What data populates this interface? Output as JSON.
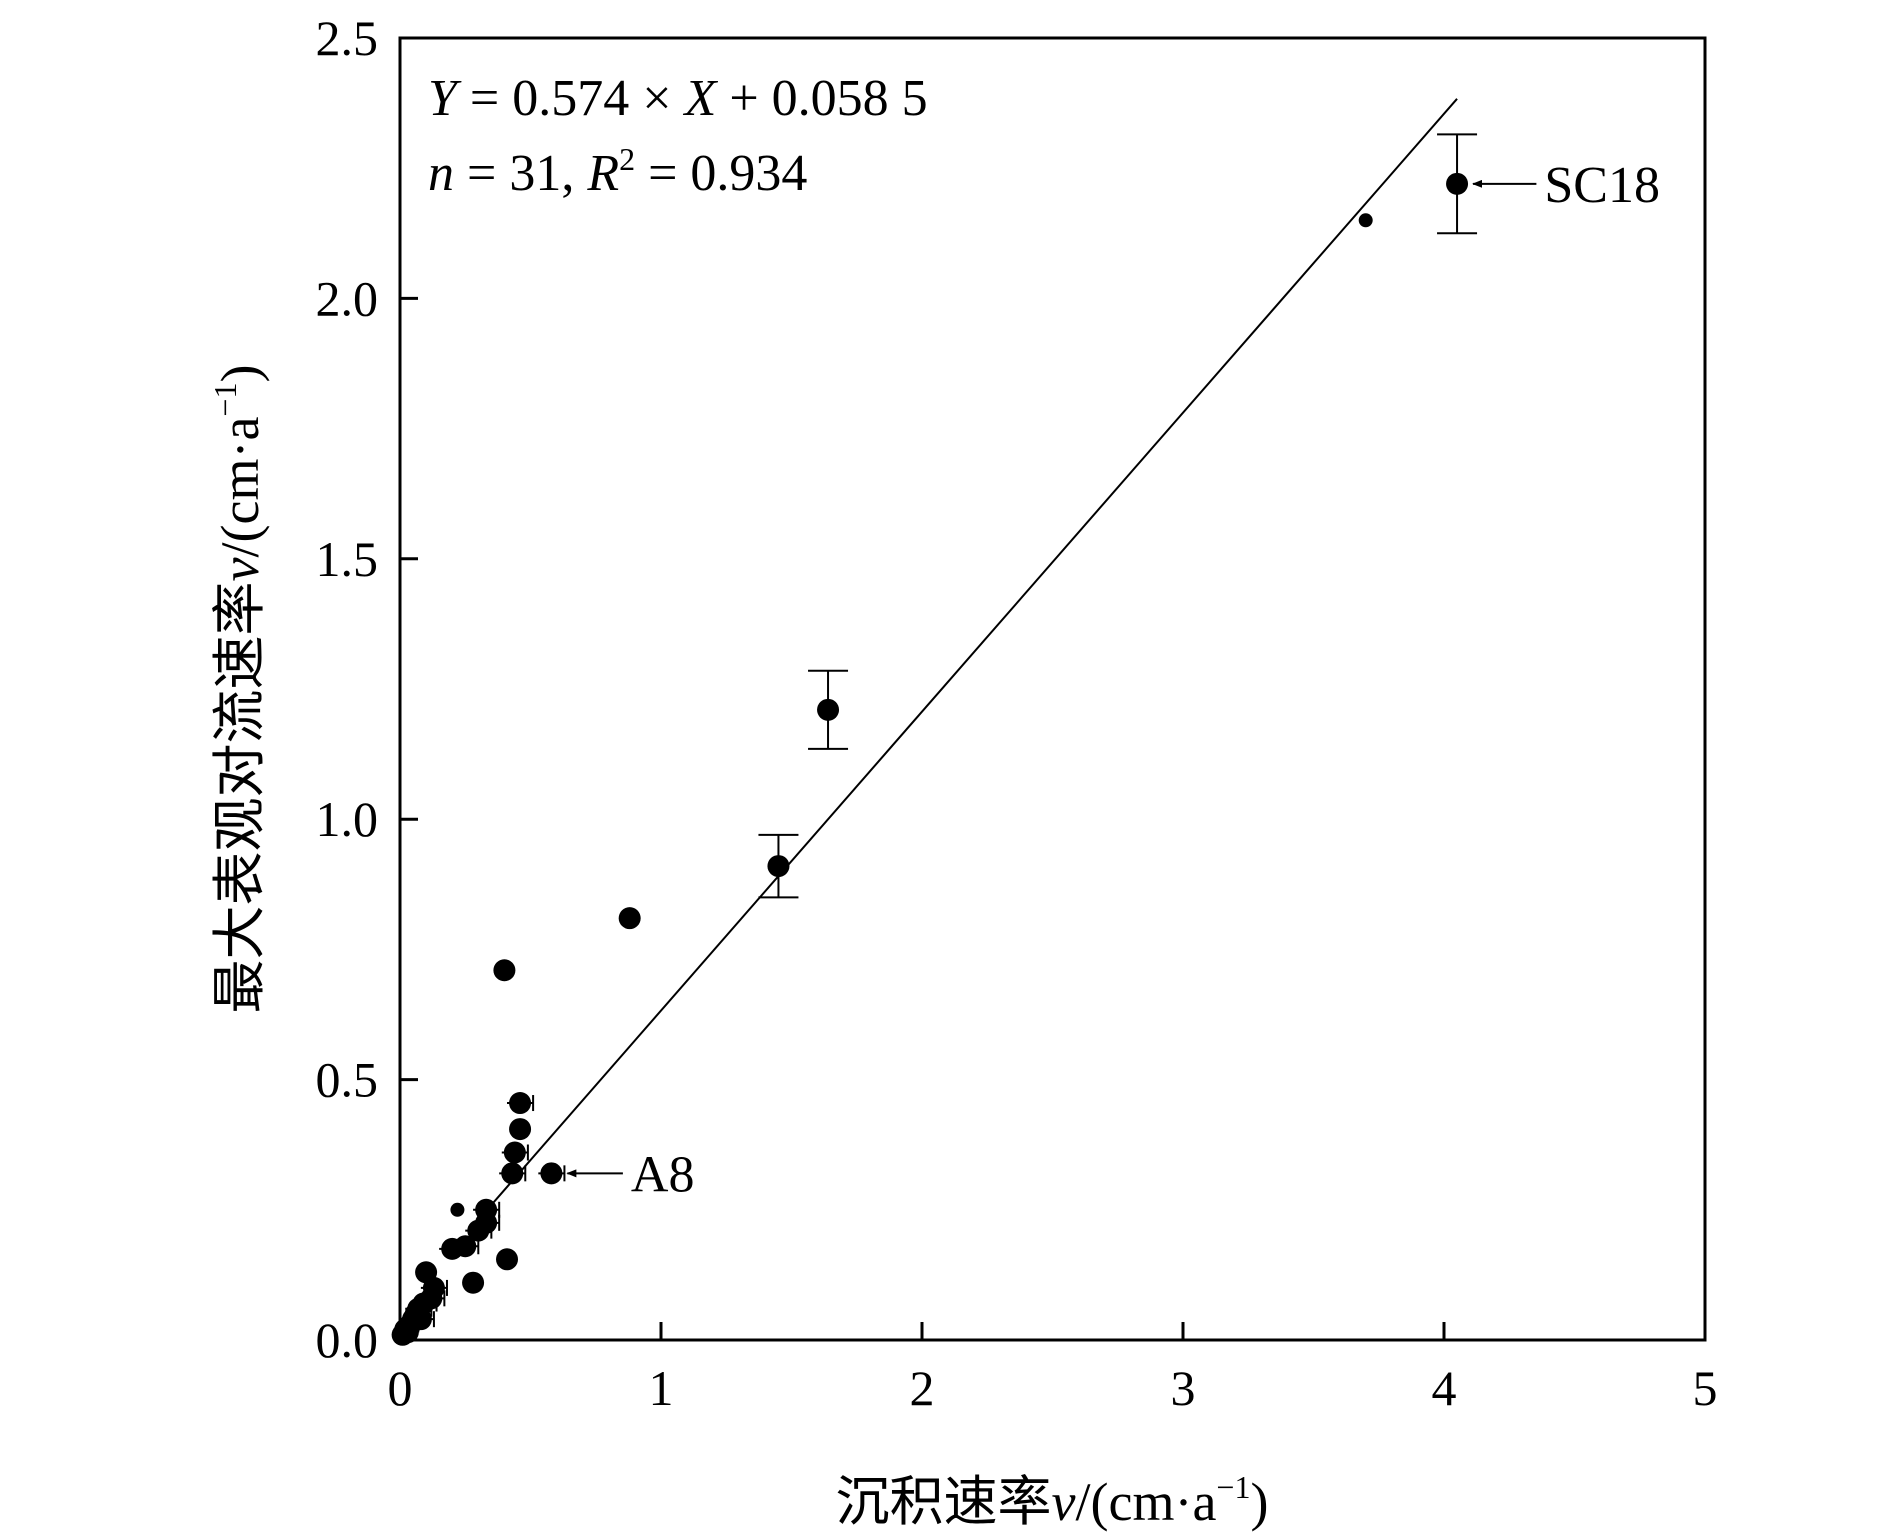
{
  "chart_data": {
    "type": "scatter",
    "title": "",
    "xlabel": {
      "main": "沉积速率",
      "var": "v",
      "unit_open": "/(cm·a",
      "unit_sup": "−1",
      "unit_close": ")"
    },
    "ylabel": {
      "main": "最大表观对流速率",
      "var": "v",
      "unit_open": "/(cm·a",
      "unit_sup": "−1",
      "unit_close": ")"
    },
    "xlim": [
      0,
      5
    ],
    "ylim": [
      0,
      2.5
    ],
    "xticks": [
      0,
      1,
      2,
      3,
      4,
      5
    ],
    "xtick_labels": [
      "0",
      "1",
      "2",
      "3",
      "4",
      "5"
    ],
    "yticks": [
      0,
      0.5,
      1.0,
      1.5,
      2.0,
      2.5
    ],
    "ytick_labels": [
      "0.0",
      "0.5",
      "1.0",
      "1.5",
      "2.0",
      "2.5"
    ],
    "grid": false,
    "equation": {
      "line1": {
        "y_var": "Y",
        "eq1": " = 0.574 × ",
        "x_var": "X",
        "eq2": " + 0.058 5"
      },
      "line2": {
        "n_var": "n",
        "n_text": " = 31, ",
        "r_var": "R",
        "r_sup": "2",
        "r_text": " = 0.934"
      }
    },
    "fit_line": {
      "slope": 0.574,
      "intercept": 0.0585,
      "x_range": [
        0.3,
        4.05
      ]
    },
    "points": [
      {
        "x": 0.01,
        "y": 0.01,
        "xerr": 0.01,
        "yerr": 0
      },
      {
        "x": 0.02,
        "y": 0.02,
        "xerr": 0.02,
        "yerr": 0
      },
      {
        "x": 0.03,
        "y": 0.015,
        "xerr": 0.02,
        "yerr": 0
      },
      {
        "x": 0.04,
        "y": 0.03,
        "xerr": 0.03,
        "yerr": 0
      },
      {
        "x": 0.05,
        "y": 0.04,
        "xerr": 0.03,
        "yerr": 0
      },
      {
        "x": 0.06,
        "y": 0.05,
        "xerr": 0.04,
        "yerr": 0
      },
      {
        "x": 0.07,
        "y": 0.06,
        "xerr": 0.05,
        "yerr": 0
      },
      {
        "x": 0.08,
        "y": 0.04,
        "xerr": 0.05,
        "yerr": 0
      },
      {
        "x": 0.09,
        "y": 0.07,
        "xerr": 0.05,
        "yerr": 0
      },
      {
        "x": 0.1,
        "y": 0.13,
        "xerr": 0,
        "yerr": 0
      },
      {
        "x": 0.12,
        "y": 0.08,
        "xerr": 0.05,
        "yerr": 0
      },
      {
        "x": 0.13,
        "y": 0.1,
        "xerr": 0.05,
        "yerr": 0
      },
      {
        "x": 0.2,
        "y": 0.175,
        "xerr": 0.05,
        "yerr": 0
      },
      {
        "x": 0.22,
        "y": 0.25,
        "xerr": 0,
        "yerr": 0,
        "small": true
      },
      {
        "x": 0.25,
        "y": 0.18,
        "xerr": 0.05,
        "yerr": 0
      },
      {
        "x": 0.28,
        "y": 0.11,
        "xerr": 0,
        "yerr": 0
      },
      {
        "x": 0.3,
        "y": 0.21,
        "xerr": 0.05,
        "yerr": 0
      },
      {
        "x": 0.33,
        "y": 0.225,
        "xerr": 0.05,
        "yerr": 0
      },
      {
        "x": 0.33,
        "y": 0.25,
        "xerr": 0.05,
        "yerr": 0
      },
      {
        "x": 0.4,
        "y": 0.71,
        "xerr": 0,
        "yerr": 0
      },
      {
        "x": 0.41,
        "y": 0.155,
        "xerr": 0,
        "yerr": 0
      },
      {
        "x": 0.43,
        "y": 0.32,
        "xerr": 0.05,
        "yerr": 0
      },
      {
        "x": 0.44,
        "y": 0.36,
        "xerr": 0.05,
        "yerr": 0
      },
      {
        "x": 0.46,
        "y": 0.405,
        "xerr": 0,
        "yerr": 0
      },
      {
        "x": 0.46,
        "y": 0.455,
        "xerr": 0.05,
        "yerr": 0
      },
      {
        "x": 0.58,
        "y": 0.32,
        "xerr": 0.05,
        "yerr": 0
      },
      {
        "x": 0.88,
        "y": 0.81,
        "xerr": 0,
        "yerr": 0
      },
      {
        "x": 1.45,
        "y": 0.91,
        "xerr": 0,
        "yerr": 0.06
      },
      {
        "x": 1.64,
        "y": 1.21,
        "xerr": 0,
        "yerr": 0.075
      },
      {
        "x": 3.7,
        "y": 2.15,
        "xerr": 0,
        "yerr": 0,
        "small": true
      },
      {
        "x": 4.05,
        "y": 2.22,
        "xerr": 0,
        "yerr": 0.095
      }
    ],
    "annotations": [
      {
        "label": "A8",
        "x": 0.58,
        "y": 0.32,
        "text_x": 0.9
      },
      {
        "label": "SC18",
        "x": 4.05,
        "y": 2.22,
        "text_x": 4.4
      }
    ]
  }
}
